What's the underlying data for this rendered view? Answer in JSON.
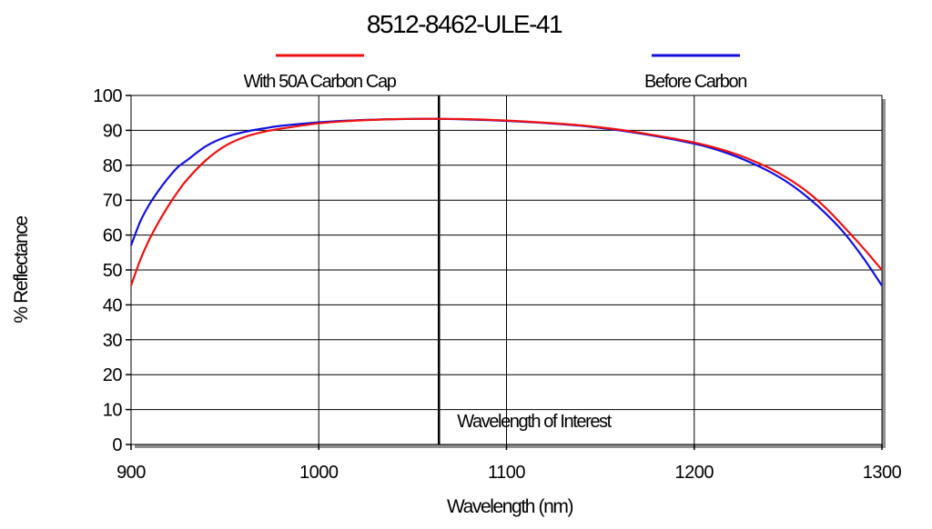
{
  "chart_data": {
    "type": "line",
    "title": "8512-8462-ULE-41",
    "xlabel": "Wavelength (nm)",
    "ylabel": "% Reflectance",
    "xlim": [
      900,
      1300
    ],
    "ylim": [
      0,
      100
    ],
    "xticks": [
      900,
      1000,
      1100,
      1200,
      1300
    ],
    "yticks": [
      0,
      10,
      20,
      30,
      40,
      50,
      60,
      70,
      80,
      90,
      100
    ],
    "grid": true,
    "legend_position": "top",
    "series": [
      {
        "name": "With 50A Carbon Cap",
        "color": "#ee1111",
        "x": [
          900,
          905,
          910,
          915,
          920,
          925,
          930,
          940,
          950,
          960,
          970,
          980,
          1000,
          1020,
          1040,
          1060,
          1080,
          1100,
          1120,
          1140,
          1160,
          1180,
          1200,
          1210,
          1220,
          1230,
          1240,
          1250,
          1260,
          1270,
          1280,
          1290,
          1300
        ],
        "y": [
          45.5,
          53,
          59,
          64,
          68.5,
          72.5,
          76,
          81.5,
          85.5,
          88,
          89.5,
          90.5,
          92,
          92.8,
          93.2,
          93.3,
          93.2,
          92.8,
          92.2,
          91.4,
          90.2,
          88.5,
          86.5,
          85.2,
          83.6,
          81.6,
          79.2,
          76.2,
          72.5,
          67.8,
          62.2,
          56.3,
          50
        ]
      },
      {
        "name": "Before Carbon",
        "color": "#1111dd",
        "x": [
          900,
          905,
          910,
          915,
          920,
          925,
          930,
          940,
          950,
          960,
          970,
          980,
          1000,
          1020,
          1040,
          1060,
          1080,
          1100,
          1120,
          1140,
          1160,
          1180,
          1200,
          1210,
          1220,
          1230,
          1240,
          1250,
          1260,
          1270,
          1280,
          1290,
          1300
        ],
        "y": [
          57,
          64,
          69,
          73,
          76.5,
          79.5,
          81.5,
          85.5,
          88,
          89.5,
          90.5,
          91.3,
          92.3,
          92.9,
          93.2,
          93.3,
          93.1,
          92.7,
          92.1,
          91.3,
          90,
          88.3,
          86.2,
          84.8,
          83,
          80.8,
          78.2,
          75,
          71,
          66.2,
          60.5,
          53.5,
          45.5
        ]
      }
    ],
    "annotations": [
      {
        "label": "Wavelength of Interest",
        "x": 1064
      }
    ]
  }
}
